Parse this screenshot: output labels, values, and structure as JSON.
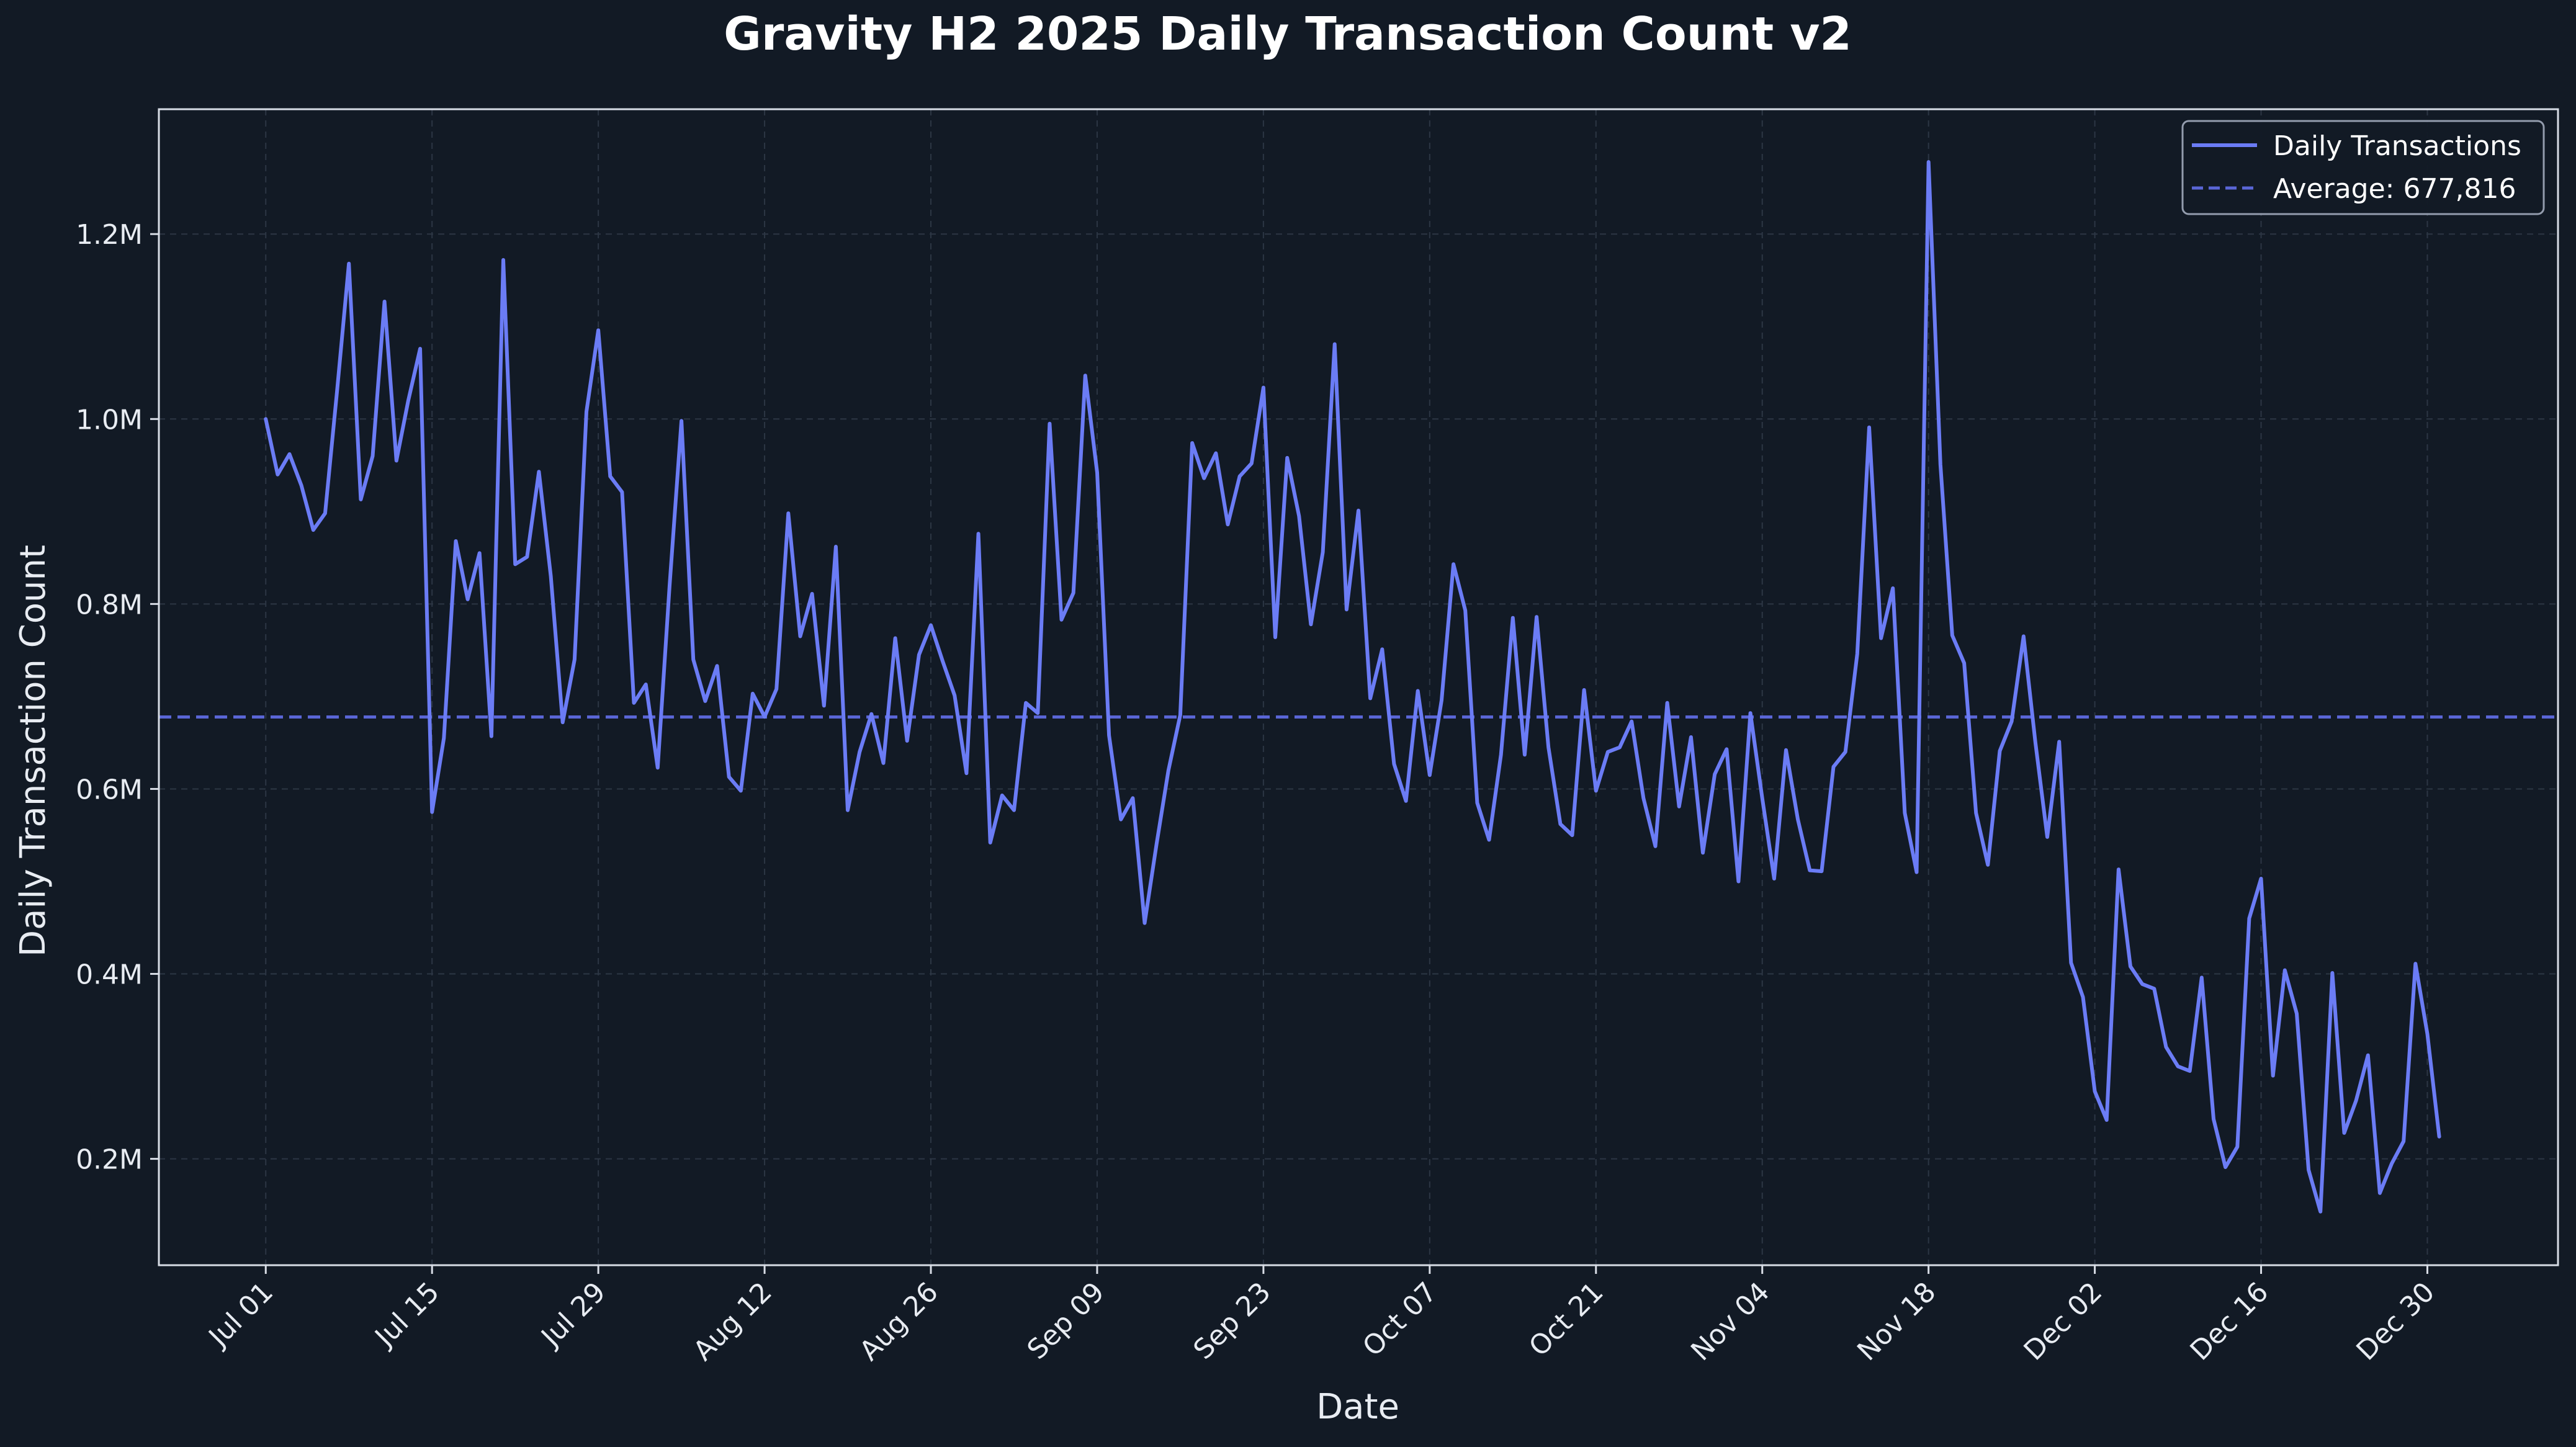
{
  "chart_data": {
    "type": "line",
    "title": "Gravity H2 2025 Daily Transaction Count v2",
    "xlabel": "Date",
    "ylabel": "Daily Transaction Count",
    "x_start": "2025-07-01",
    "x_end": "2025-12-31",
    "xlim": [
      "2025-06-22",
      "2026-01-10"
    ],
    "ylim": [
      85000,
      1335000
    ],
    "x_ticks": [
      {
        "date": "2025-07-01",
        "label": "Jul 01"
      },
      {
        "date": "2025-07-15",
        "label": "Jul 15"
      },
      {
        "date": "2025-07-29",
        "label": "Jul 29"
      },
      {
        "date": "2025-08-12",
        "label": "Aug 12"
      },
      {
        "date": "2025-08-26",
        "label": "Aug 26"
      },
      {
        "date": "2025-09-09",
        "label": "Sep 09"
      },
      {
        "date": "2025-09-23",
        "label": "Sep 23"
      },
      {
        "date": "2025-10-07",
        "label": "Oct 07"
      },
      {
        "date": "2025-10-21",
        "label": "Oct 21"
      },
      {
        "date": "2025-11-04",
        "label": "Nov 04"
      },
      {
        "date": "2025-11-18",
        "label": "Nov 18"
      },
      {
        "date": "2025-12-02",
        "label": "Dec 02"
      },
      {
        "date": "2025-12-16",
        "label": "Dec 16"
      },
      {
        "date": "2025-12-30",
        "label": "Dec 30"
      }
    ],
    "y_ticks": [
      {
        "value": 200000,
        "label": "0.2M"
      },
      {
        "value": 400000,
        "label": "0.4M"
      },
      {
        "value": 600000,
        "label": "0.6M"
      },
      {
        "value": 800000,
        "label": "0.8M"
      },
      {
        "value": 1000000,
        "label": "1.0M"
      },
      {
        "value": 1200000,
        "label": "1.2M"
      }
    ],
    "grid": true,
    "legend_position": "top-right",
    "colors": {
      "background": "#121a25",
      "line": "#6b7cf5",
      "average_line": "#5a66d6",
      "grid": "#2c3644",
      "axis": "#d8dde6",
      "text": "#e8ecf2"
    },
    "series": [
      {
        "name": "Daily Transactions",
        "style": "solid",
        "values": [
          1000000,
          940000,
          962000,
          928000,
          880000,
          898000,
          1030000,
          1168000,
          913000,
          960000,
          1127000,
          955000,
          1020000,
          1076000,
          575000,
          655000,
          868000,
          805000,
          855000,
          657000,
          1172000,
          843000,
          851000,
          943000,
          830000,
          672000,
          740000,
          1008000,
          1096000,
          938000,
          921000,
          693000,
          713000,
          623000,
          820000,
          998000,
          740000,
          695000,
          733000,
          613000,
          598000,
          703000,
          678000,
          708000,
          898000,
          765000,
          811000,
          690000,
          862000,
          577000,
          640000,
          681000,
          628000,
          763000,
          652000,
          745000,
          777000,
          738000,
          701000,
          617000,
          876000,
          542000,
          593000,
          577000,
          693000,
          682000,
          995000,
          783000,
          812000,
          1047000,
          942000,
          658000,
          567000,
          590000,
          455000,
          540000,
          620000,
          680000,
          974000,
          936000,
          963000,
          886000,
          938000,
          952000,
          1034000,
          764000,
          958000,
          895000,
          778000,
          856000,
          1081000,
          794000,
          901000,
          698000,
          751000,
          627000,
          587000,
          706000,
          615000,
          696000,
          843000,
          793000,
          585000,
          545000,
          637000,
          785000,
          637000,
          786000,
          645000,
          562000,
          550000,
          707000,
          598000,
          640000,
          645000,
          673000,
          590000,
          538000,
          693000,
          581000,
          656000,
          531000,
          616000,
          643000,
          500000,
          682000,
          590000,
          503000,
          642000,
          567000,
          512000,
          511000,
          624000,
          640000,
          746000,
          991000,
          763000,
          817000,
          574000,
          510000,
          1278000,
          951000,
          766000,
          736000,
          574000,
          518000,
          641000,
          673000,
          765000,
          650000,
          548000,
          651000,
          412000,
          375000,
          273000,
          242000,
          513000,
          408000,
          389000,
          384000,
          321000,
          300000,
          295000,
          396000,
          243000,
          191000,
          213000,
          460000,
          503000,
          290000,
          404000,
          357000,
          188000,
          143000,
          401000,
          228000,
          263000,
          312000,
          163000,
          195000,
          219000,
          411000,
          335000,
          224000
        ]
      },
      {
        "name": "Average: 677,816",
        "style": "dashed",
        "value": 677816
      }
    ]
  }
}
